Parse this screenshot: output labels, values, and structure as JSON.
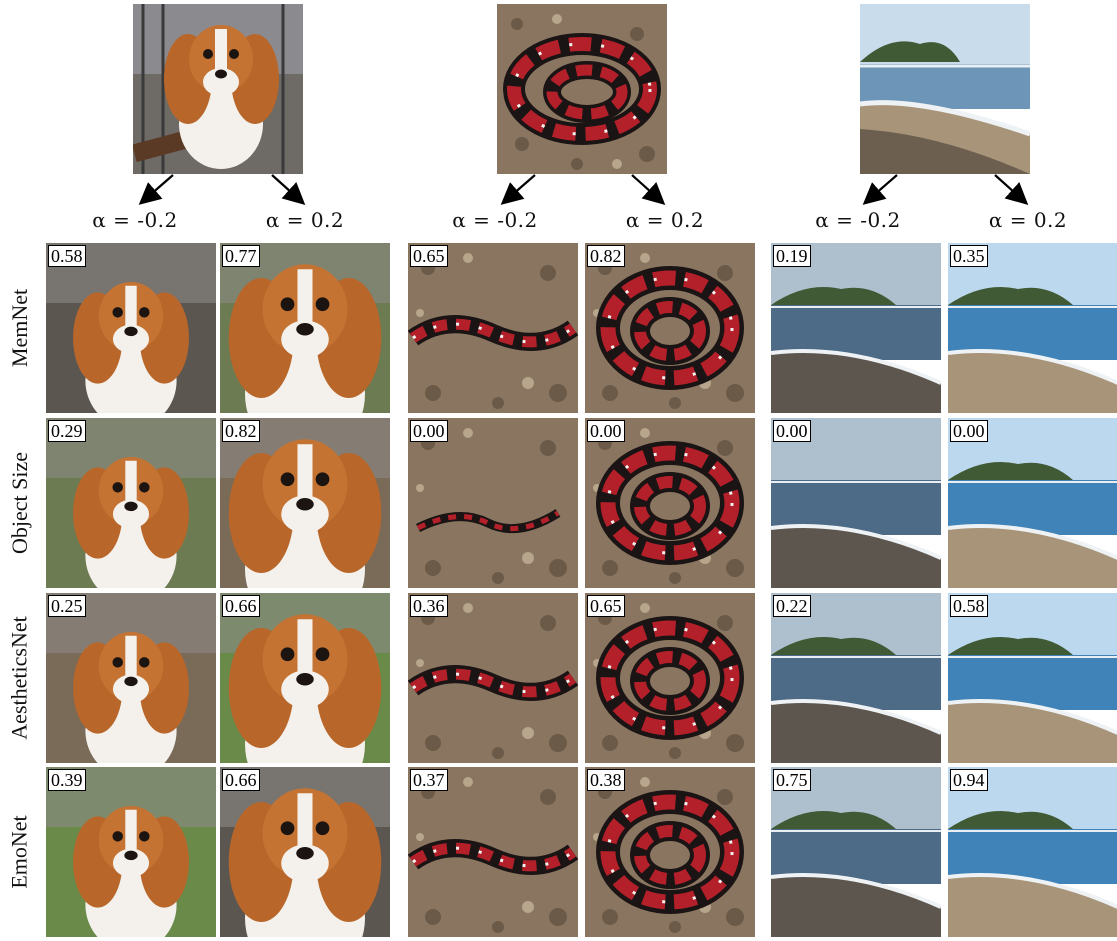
{
  "alpha_labels": {
    "neg": "α = -0.2",
    "pos": "α = 0.2"
  },
  "subjects": [
    {
      "name": "dog",
      "icon": "dog-photo"
    },
    {
      "name": "snake",
      "icon": "snake-photo"
    },
    {
      "name": "beach",
      "icon": "beach-photo"
    }
  ],
  "rows": [
    {
      "label": "MemNet",
      "scores": [
        "0.58",
        "0.77",
        "0.65",
        "0.82",
        "0.19",
        "0.35"
      ]
    },
    {
      "label": "Object Size",
      "scores": [
        "0.29",
        "0.82",
        "0.00",
        "0.00",
        "0.00",
        "0.00"
      ]
    },
    {
      "label": "AestheticsNet",
      "scores": [
        "0.25",
        "0.66",
        "0.36",
        "0.65",
        "0.22",
        "0.58"
      ]
    },
    {
      "label": "EmoNet",
      "scores": [
        "0.39",
        "0.66",
        "0.37",
        "0.38",
        "0.75",
        "0.94"
      ]
    }
  ],
  "colors": {
    "dog_fur": "#b8662a",
    "dog_white": "#f4f1ec",
    "snake_red": "#b3202a",
    "snake_black": "#1a1414",
    "gravel": "#8a7660",
    "sea": "#5f8fb8",
    "sky": "#c9dceb",
    "sand": "#a89478",
    "island": "#3f5a34"
  }
}
